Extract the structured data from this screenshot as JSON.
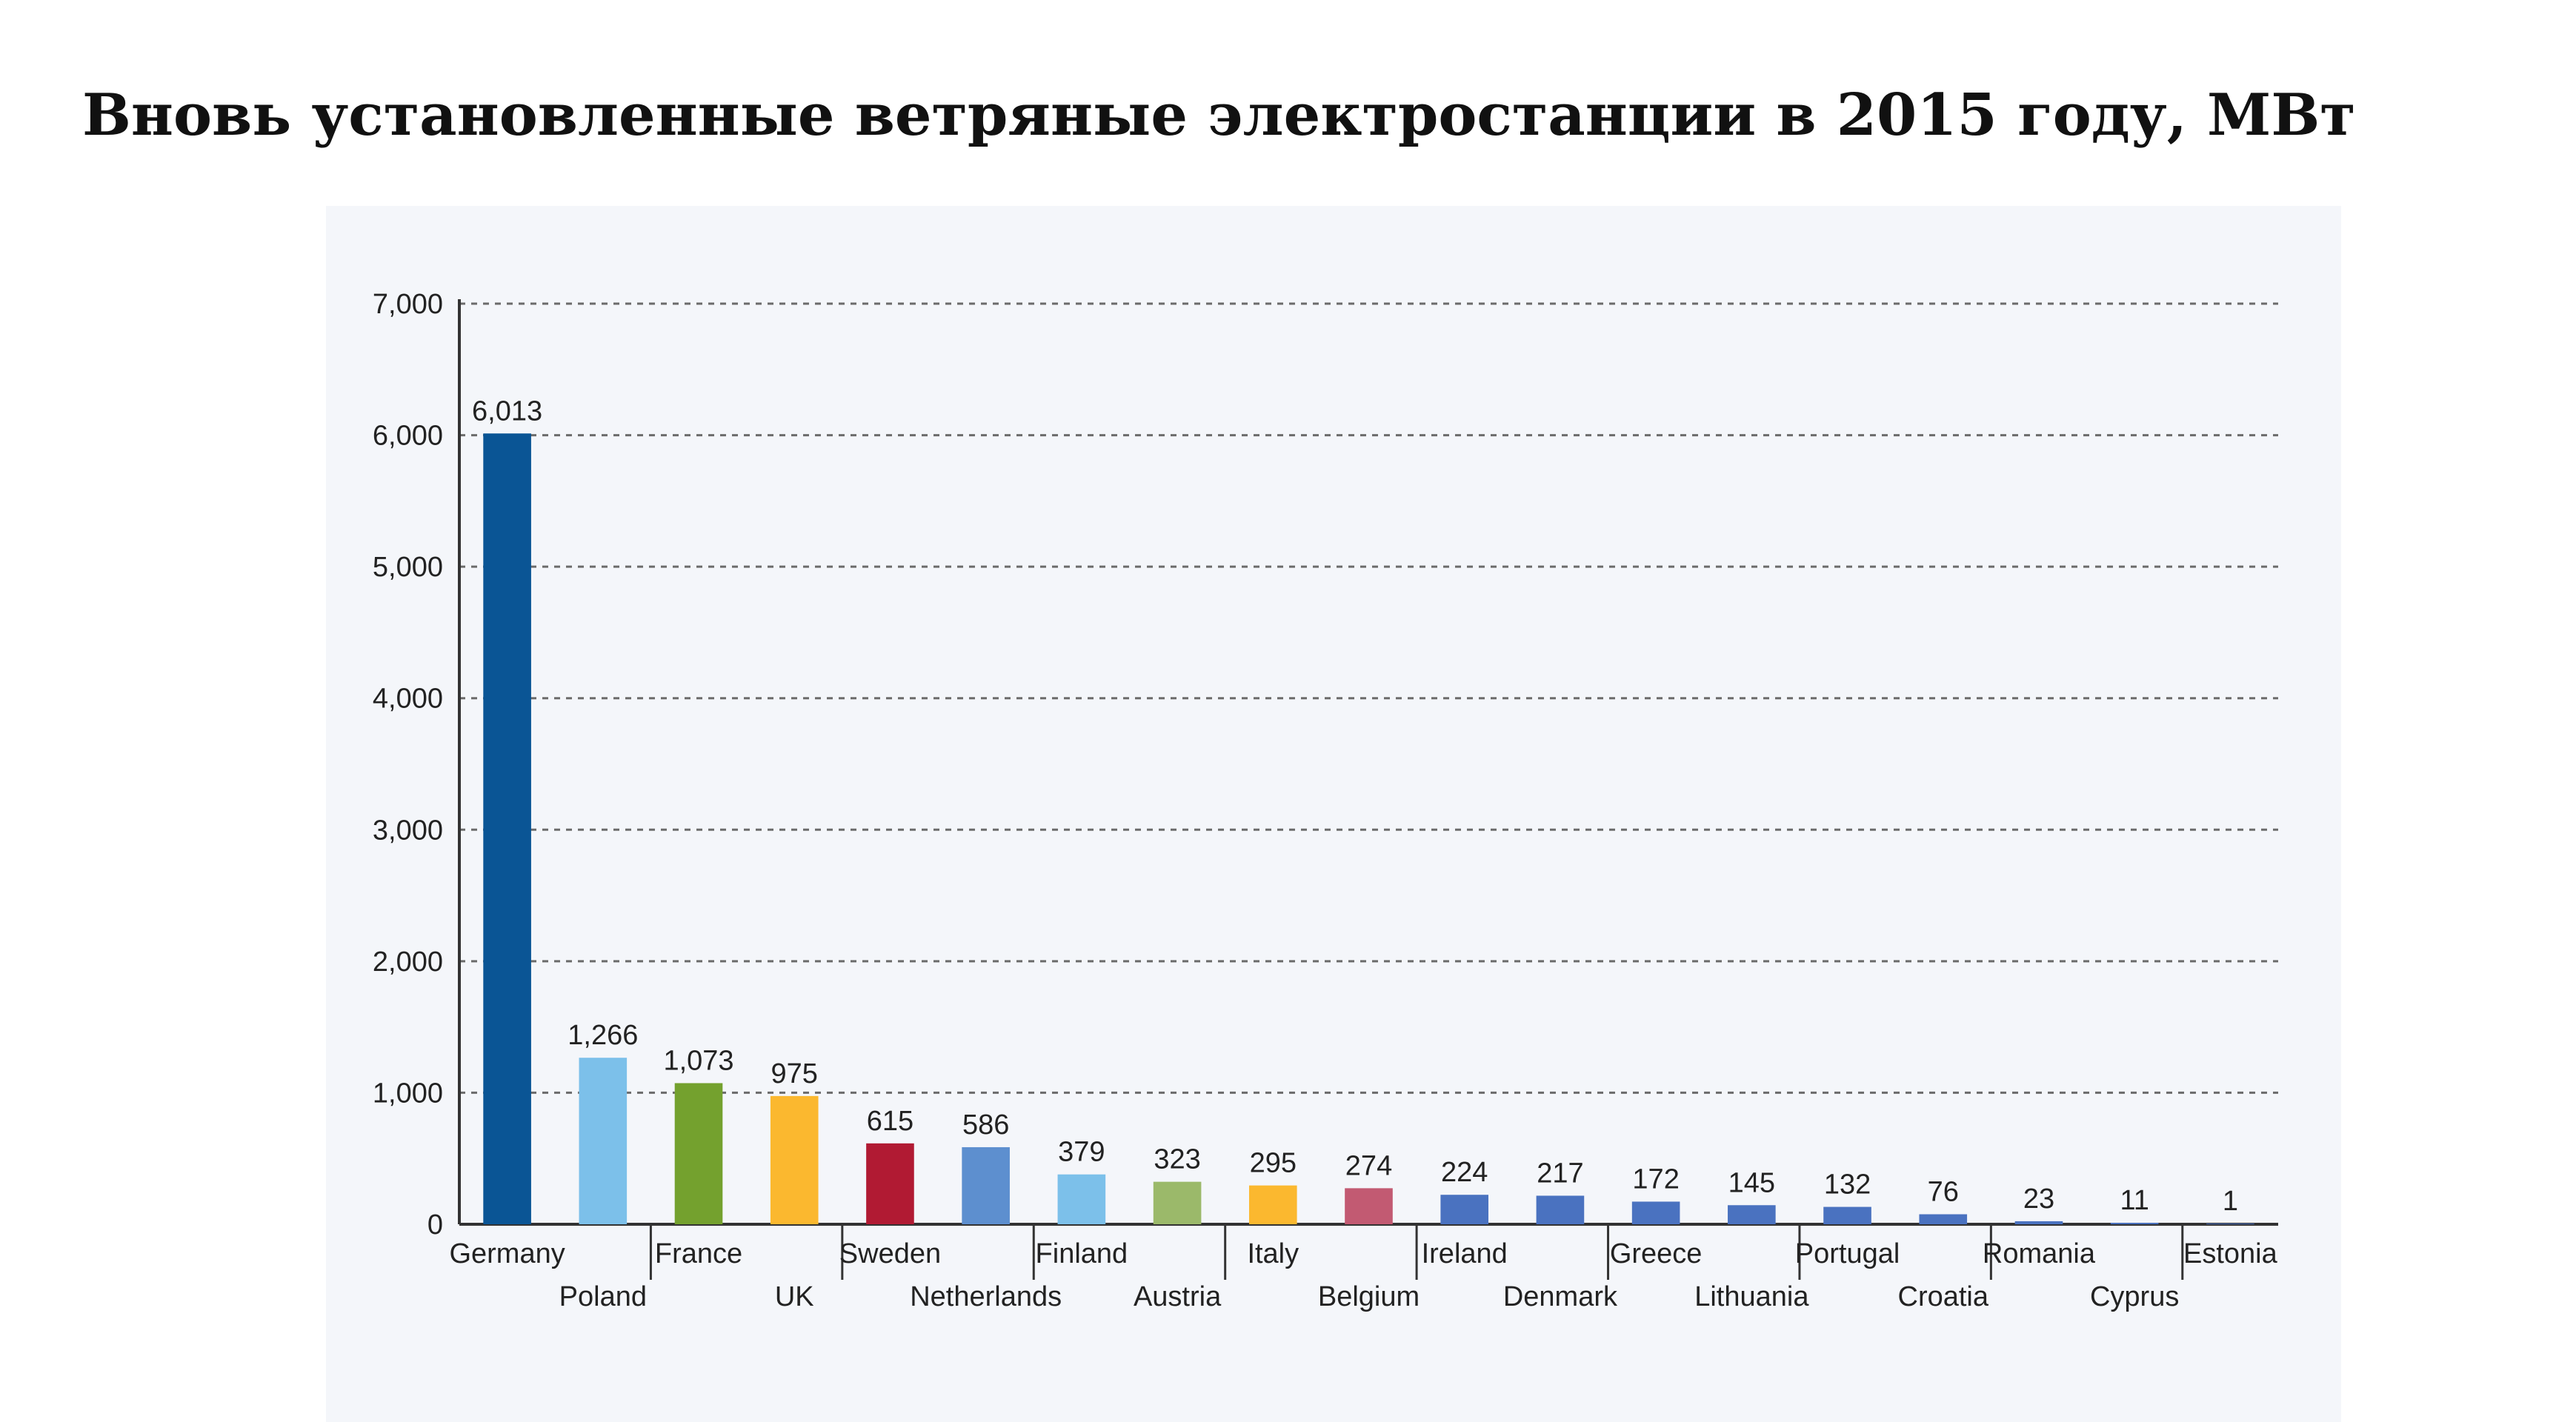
{
  "chart_data": {
    "type": "bar",
    "title": "Вновь установленные ветряные электростанции в 2015 году, МВт",
    "xlabel": "",
    "ylabel": "",
    "ylim": [
      0,
      7000
    ],
    "yticks": [
      0,
      1000,
      2000,
      3000,
      4000,
      5000,
      6000,
      7000
    ],
    "ytick_labels": [
      "0",
      "1,000",
      "2,000",
      "3,000",
      "4,000",
      "5,000",
      "6,000",
      "7,000"
    ],
    "grid": true,
    "legend": "none",
    "categories": [
      "Germany",
      "Poland",
      "France",
      "UK",
      "Sweden",
      "Netherlands",
      "Finland",
      "Austria",
      "Italy",
      "Belgium",
      "Ireland",
      "Denmark",
      "Greece",
      "Lithuania",
      "Portugal",
      "Croatia",
      "Romania",
      "Cyprus",
      "Estonia"
    ],
    "values": [
      6013,
      1266,
      1073,
      975,
      615,
      586,
      379,
      323,
      295,
      274,
      224,
      217,
      172,
      145,
      132,
      76,
      23,
      11,
      1
    ],
    "value_labels": [
      "6,013",
      "1,266",
      "1,073",
      "975",
      "615",
      "586",
      "379",
      "323",
      "295",
      "274",
      "224",
      "217",
      "172",
      "145",
      "132",
      "76",
      "23",
      "11",
      "1"
    ],
    "colors": [
      "#0a5595",
      "#7cc0ea",
      "#74a12e",
      "#fbb82f",
      "#b11a33",
      "#5d8fcf",
      "#7cc0ea",
      "#9bb96a",
      "#fbb82f",
      "#c25a72",
      "#4a72c0",
      "#4a72c0",
      "#4a72c0",
      "#4a72c0",
      "#4a72c0",
      "#4a72c0",
      "#4a72c0",
      "#4a72c0",
      "#4a72c0"
    ]
  }
}
